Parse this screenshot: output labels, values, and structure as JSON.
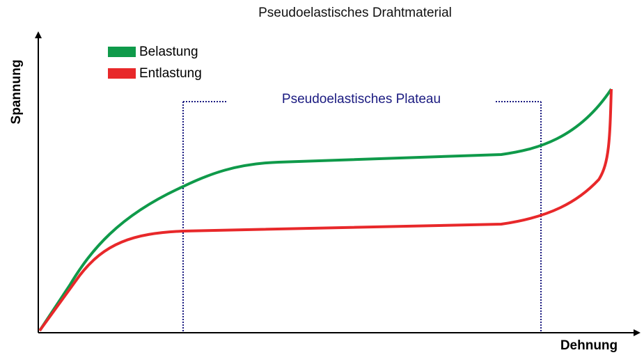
{
  "title": "Pseudoelastisches Drahtmaterial",
  "legend": [
    {
      "label": "Belastung"
    },
    {
      "label": "Entlastung"
    }
  ],
  "annotation": "Pseudoelastisches Plateau",
  "axes": {
    "y_label": "Spannung",
    "x_label": "Dehnung"
  }
}
